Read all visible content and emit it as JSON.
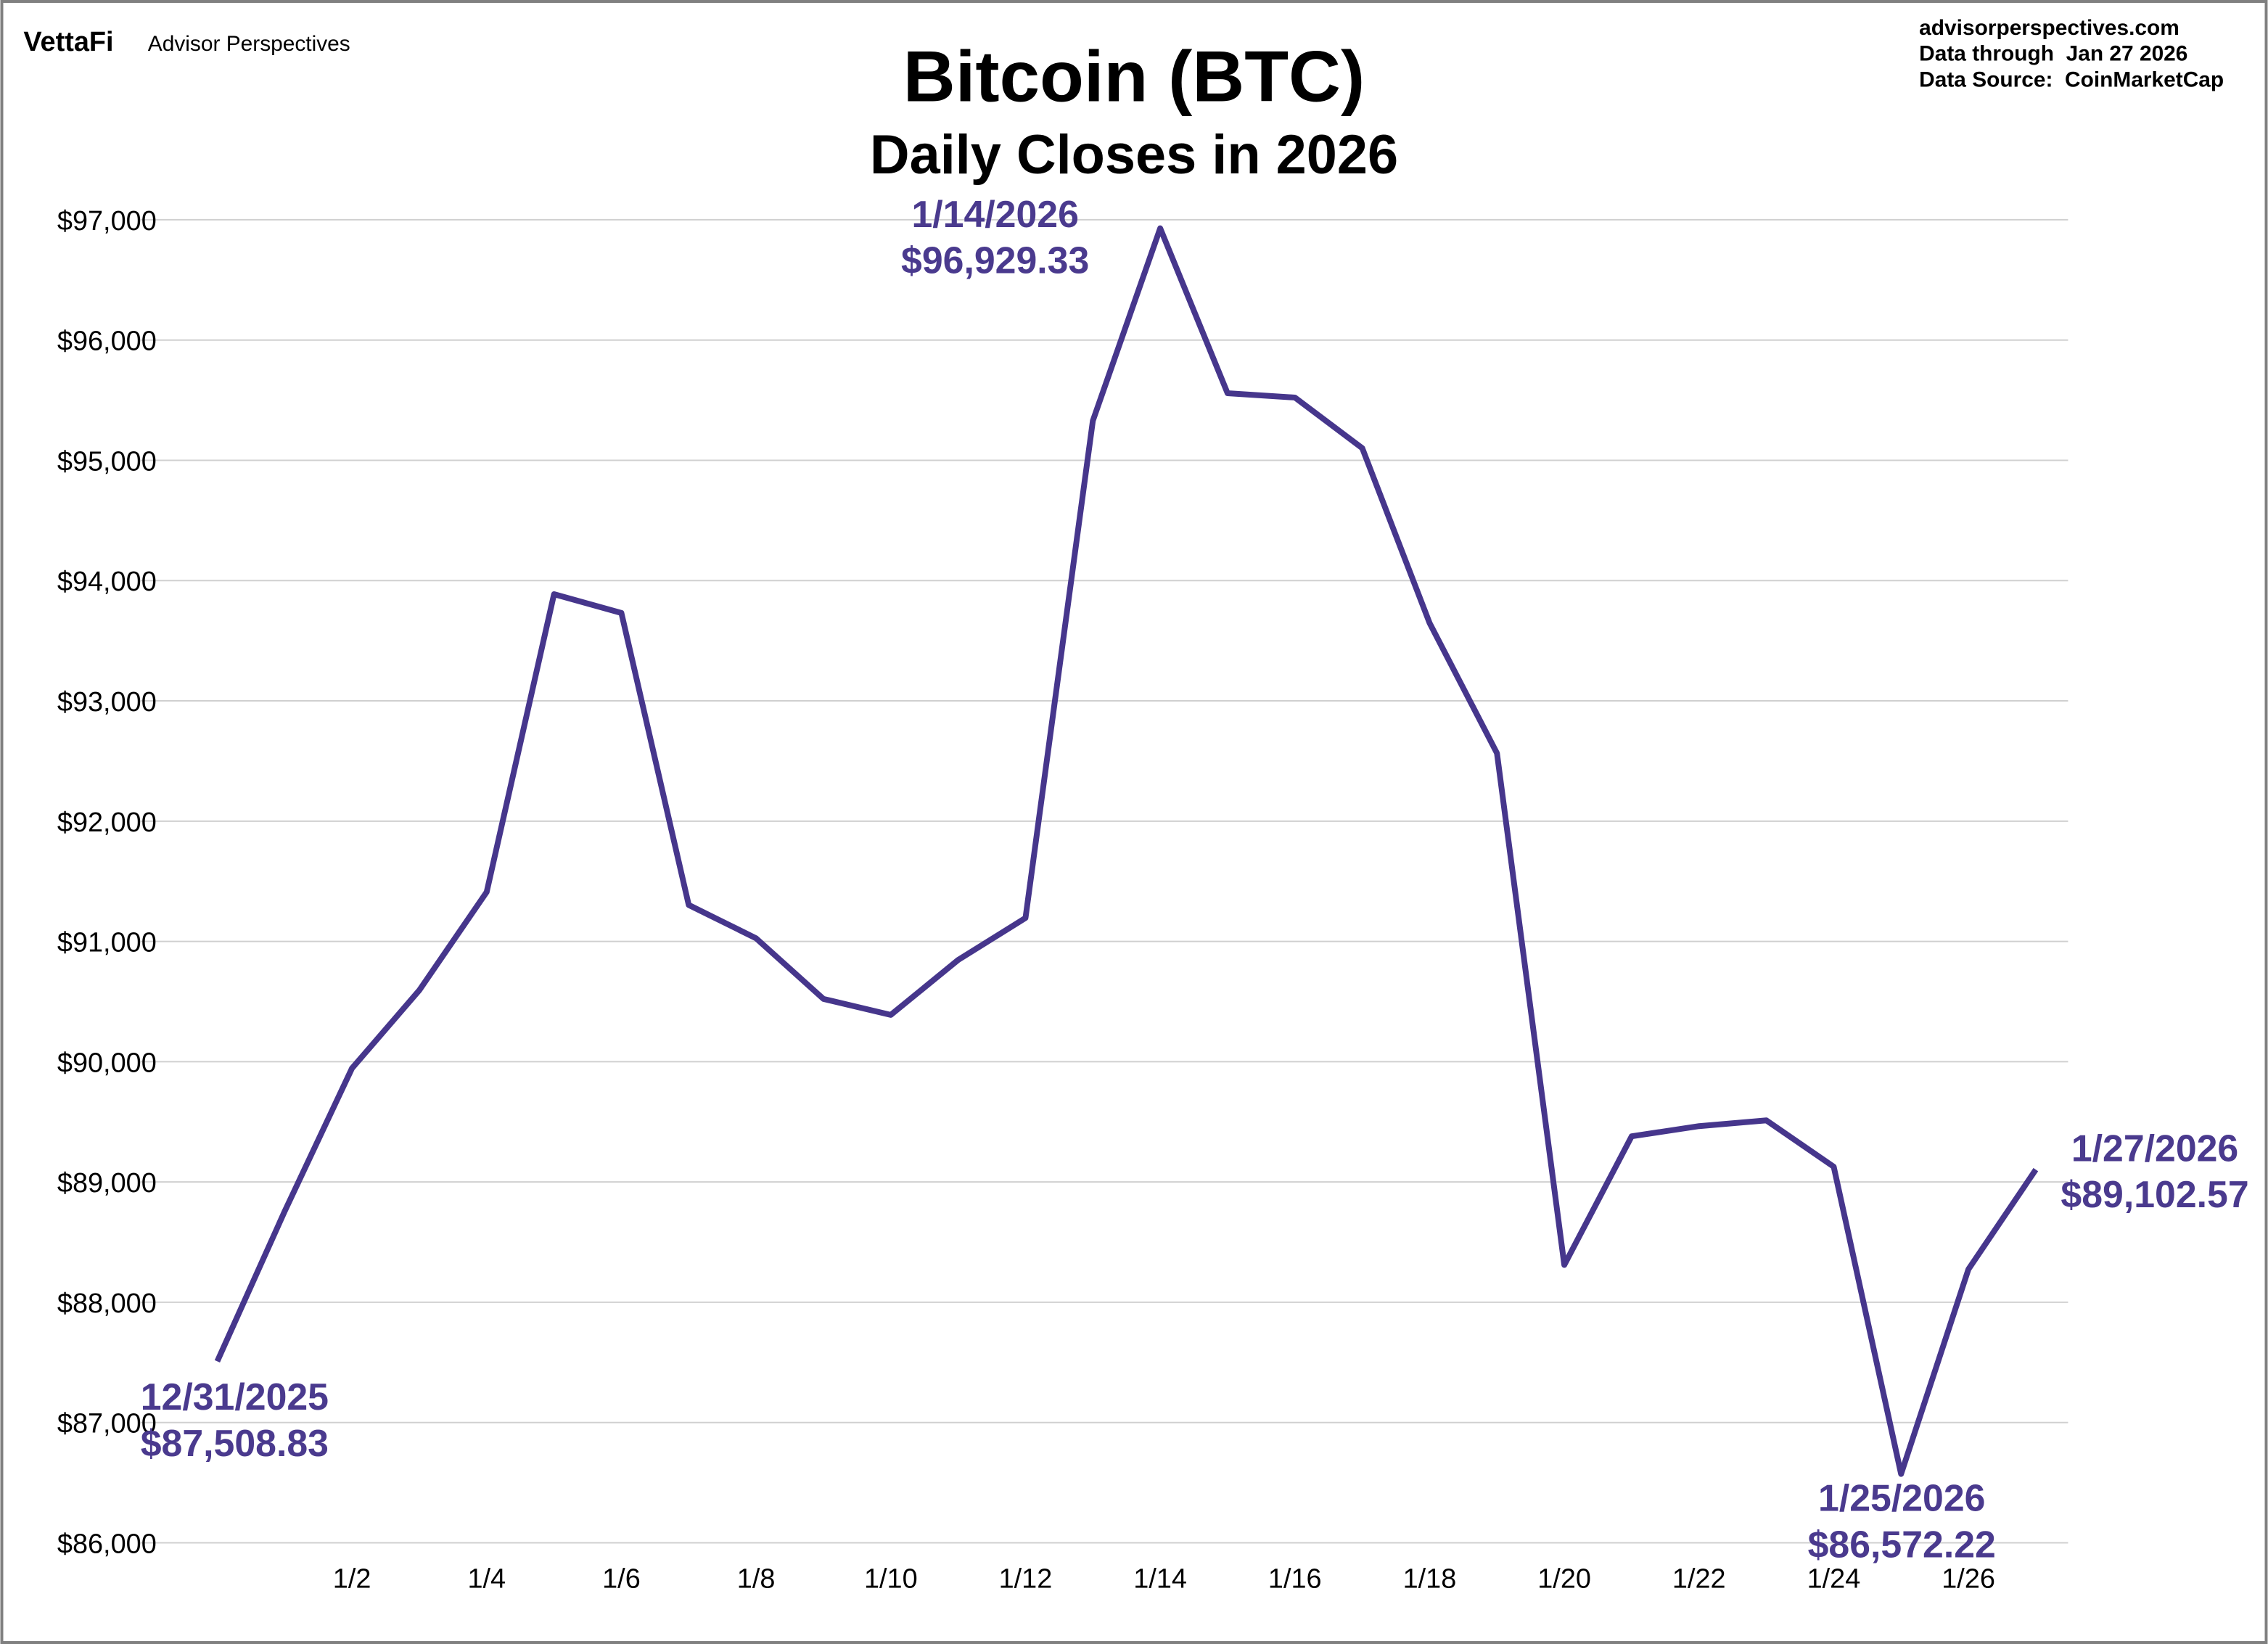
{
  "header": {
    "logo": "VettaFi",
    "brand": "Advisor Perspectives",
    "site": "advisorperspectives.com",
    "data_through": "Data through  Jan 27 2026",
    "data_source": "Data Source:  CoinMarketCap"
  },
  "colors": {
    "line": "#46368c",
    "annotation": "#4a3a8e",
    "grid": "#d0d0d0",
    "border": "#808080"
  },
  "chart_data": {
    "type": "line",
    "title": "Bitcoin (BTC)",
    "subtitle": "Daily Closes in 2026",
    "ylim": [
      86000,
      97000
    ],
    "y_ticks": [
      86000,
      87000,
      88000,
      89000,
      90000,
      91000,
      92000,
      93000,
      94000,
      95000,
      96000,
      97000
    ],
    "y_tick_labels": [
      "$86,000",
      "$87,000",
      "$88,000",
      "$89,000",
      "$90,000",
      "$91,000",
      "$92,000",
      "$93,000",
      "$94,000",
      "$95,000",
      "$96,000",
      "$97,000"
    ],
    "x_tick_labels": [
      "1/2",
      "1/4",
      "1/6",
      "1/8",
      "1/10",
      "1/12",
      "1/14",
      "1/16",
      "1/18",
      "1/20",
      "1/22",
      "1/24",
      "1/26"
    ],
    "grid": "horizontal",
    "x": [
      "12/31/2025",
      "1/1",
      "1/2",
      "1/3",
      "1/4",
      "1/5",
      "1/6",
      "1/7",
      "1/8",
      "1/9",
      "1/10",
      "1/11",
      "1/12",
      "1/13",
      "1/14",
      "1/15",
      "1/16",
      "1/17",
      "1/18",
      "1/19",
      "1/20",
      "1/21",
      "1/22",
      "1/23",
      "1/24",
      "1/25",
      "1/26",
      "1/27"
    ],
    "values": [
      87508.83,
      88755,
      89945,
      90594,
      91411,
      93887,
      93731,
      91303,
      91026,
      90522,
      90389,
      90846,
      91195,
      95329,
      96929.33,
      95558,
      95522,
      95101,
      93647,
      92565,
      88310,
      89380,
      89464,
      89512,
      89127,
      86572.22,
      88274,
      89102.57
    ],
    "annotations": [
      {
        "date": "12/31/2025",
        "value": "$87,508.83"
      },
      {
        "date": "1/14/2026",
        "value": "$96,929.33"
      },
      {
        "date": "1/25/2026",
        "value": "$86,572.22"
      },
      {
        "date": "1/27/2026",
        "value": "$89,102.57"
      }
    ]
  }
}
